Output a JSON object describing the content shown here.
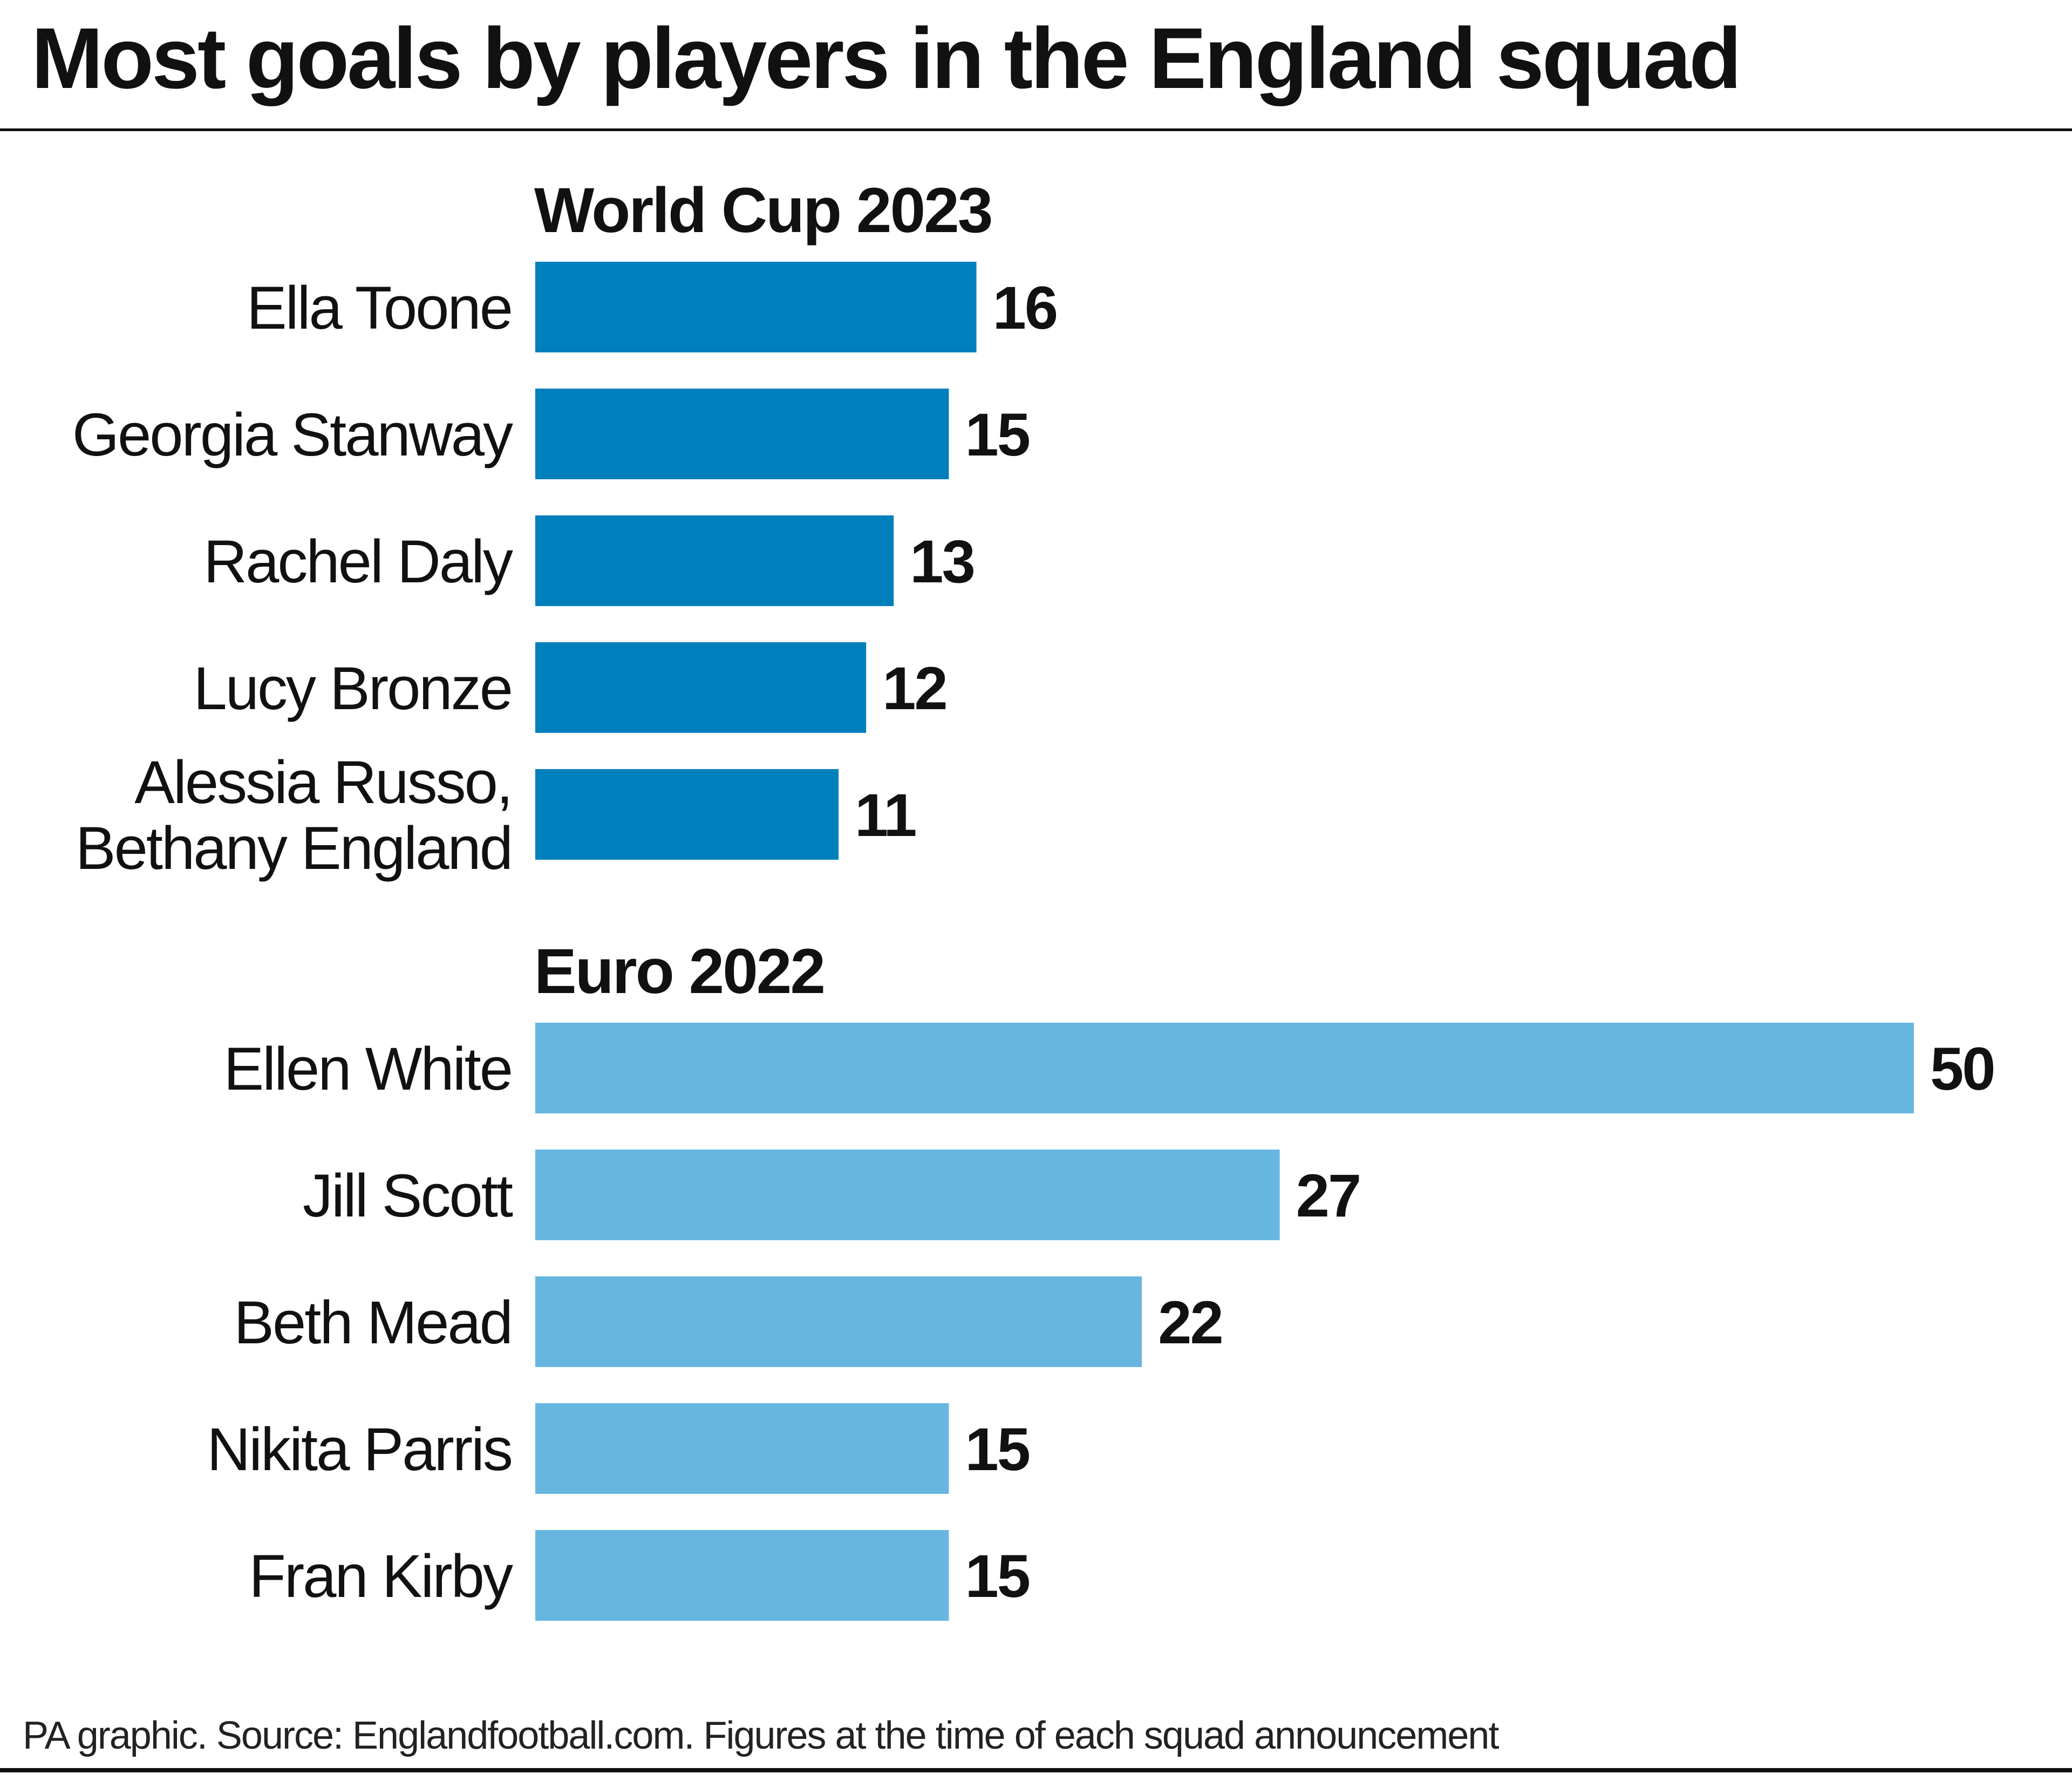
{
  "title": "Most goals by players in the England squad",
  "footer": "PA graphic. Source: Englandfootball.com. Figures at the time of each squad announcement",
  "colors": {
    "world_cup_2023": "#007fbd",
    "euro_2022": "#66b6e0"
  },
  "chart_data": [
    {
      "type": "bar",
      "orientation": "horizontal",
      "title": "World Cup 2023",
      "color": "#007fbd",
      "categories": [
        "Ella Toone",
        "Georgia Stanway",
        "Rachel Daly",
        "Lucy Bronze",
        "Alessia Russo,\nBethany England"
      ],
      "values": [
        16,
        15,
        13,
        12,
        11
      ],
      "xlim": [
        0,
        50
      ],
      "grid": false
    },
    {
      "type": "bar",
      "orientation": "horizontal",
      "title": "Euro 2022",
      "color": "#66b6e0",
      "categories": [
        "Ellen White",
        "Jill Scott",
        "Beth Mead",
        "Nikita Parris",
        "Fran Kirby"
      ],
      "values": [
        50,
        27,
        22,
        15,
        15
      ],
      "xlim": [
        0,
        50
      ],
      "grid": false
    }
  ]
}
